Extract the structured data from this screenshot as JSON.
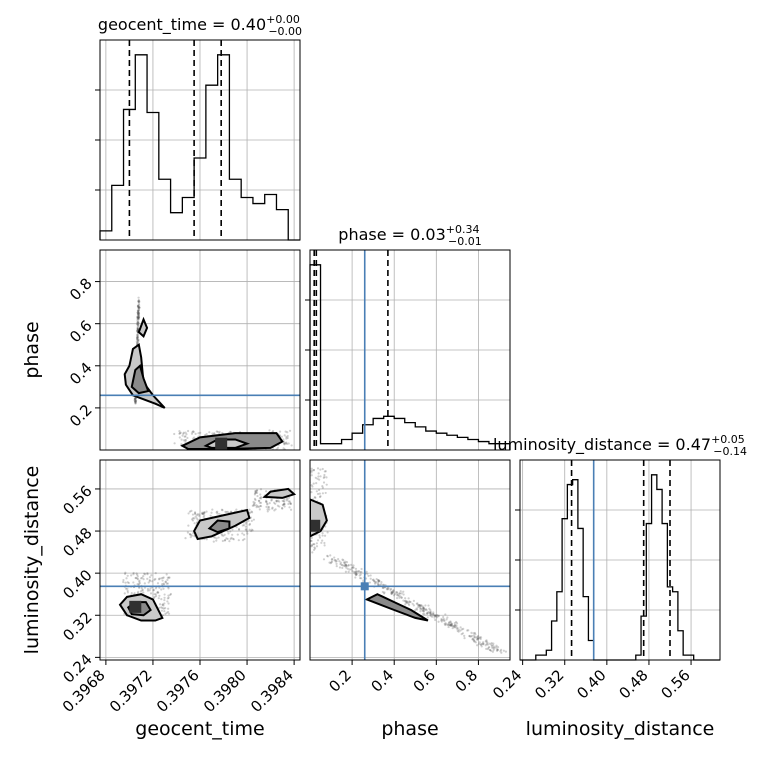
{
  "chart_data": {
    "type": "corner",
    "parameters": [
      "geocent_time",
      "phase",
      "luminosity_distance"
    ],
    "axis_labels": {
      "geocent_time": "geocent_time",
      "phase": "phase",
      "luminosity_distance": "luminosity_distance"
    },
    "ranges": {
      "geocent_time": [
        0.39675,
        0.39845
      ],
      "phase": [
        0.0,
        0.95
      ],
      "luminosity_distance": [
        0.235,
        0.615
      ]
    },
    "ticks": {
      "geocent_time": [
        "0.3968",
        "0.3972",
        "0.3976",
        "0.3980",
        "0.3984"
      ],
      "phase": [
        "0.2",
        "0.4",
        "0.6",
        "0.8"
      ],
      "luminosity_distance": [
        "0.24",
        "0.32",
        "0.40",
        "0.48",
        "0.56"
      ]
    },
    "truths": {
      "geocent_time": null,
      "phase": 0.26,
      "luminosity_distance": 0.375
    },
    "marginals": [
      {
        "parameter": "geocent_time",
        "title_main": "geocent_time = 0.40",
        "title_plus": "+0.00",
        "title_minus": "−0.00",
        "quantiles": [
          0.397,
          0.39755,
          0.39778
        ],
        "bin_edges": [
          0.39675,
          0.39685,
          0.39695,
          0.39705,
          0.39715,
          0.39725,
          0.39735,
          0.39745,
          0.39755,
          0.39765,
          0.39775,
          0.39785,
          0.39795,
          0.39805,
          0.39815,
          0.39825,
          0.39835,
          0.39845
        ],
        "counts": [
          3,
          18,
          43,
          61,
          42,
          20,
          9,
          14,
          27,
          51,
          61,
          20,
          14,
          12,
          15,
          10,
          0
        ]
      },
      {
        "parameter": "phase",
        "title_main": "phase = 0.03",
        "title_plus": "+0.34",
        "title_minus": "−0.01",
        "quantiles": [
          0.02,
          0.03,
          0.37
        ],
        "bin_edges": [
          0.0,
          0.05,
          0.1,
          0.15,
          0.2,
          0.25,
          0.3,
          0.35,
          0.4,
          0.45,
          0.5,
          0.55,
          0.6,
          0.65,
          0.7,
          0.75,
          0.8,
          0.85,
          0.9,
          0.95
        ],
        "counts": [
          88,
          3,
          3,
          5,
          8,
          12,
          15,
          16,
          15,
          13,
          11,
          9,
          8,
          7,
          6,
          5,
          4,
          3,
          3
        ]
      },
      {
        "parameter": "luminosity_distance",
        "title_main": "luminosity_distance = 0.47",
        "title_plus": "+0.05",
        "title_minus": "−0.14",
        "quantiles": [
          0.333,
          0.47,
          0.52
        ],
        "bin_edges": [
          0.235,
          0.245,
          0.255,
          0.265,
          0.275,
          0.285,
          0.295,
          0.305,
          0.315,
          0.325,
          0.335,
          0.345,
          0.355,
          0.365,
          0.375,
          0.385,
          0.395,
          0.405,
          0.415,
          0.425,
          0.435,
          0.445,
          0.455,
          0.465,
          0.475,
          0.485,
          0.495,
          0.505,
          0.515,
          0.525,
          0.535,
          0.545,
          0.555,
          0.565,
          0.575,
          0.585,
          0.595,
          0.605,
          0.615
        ],
        "counts": [
          0,
          0,
          0,
          1,
          1,
          2,
          8,
          14,
          29,
          36,
          37,
          27,
          13,
          4,
          0,
          0,
          0,
          0,
          0,
          0,
          0,
          0,
          1,
          9,
          28,
          38,
          35,
          28,
          15,
          14,
          6,
          1,
          1,
          0,
          0,
          0,
          0,
          0
        ]
      }
    ],
    "joint": [
      {
        "x": "geocent_time",
        "y": "phase",
        "clusters": [
          {
            "n": 240,
            "x": [
              0.39705,
              0.39708
            ],
            "y": [
              0.22,
              0.72
            ]
          },
          {
            "n": 260,
            "x": [
              0.3974,
              0.39835
            ],
            "y": [
              0.005,
              0.09
            ]
          }
        ],
        "contours": [
          [
            [
              0.39697,
              0.31
            ],
            [
              0.39703,
              0.26
            ],
            [
              0.39722,
              0.22
            ],
            [
              0.3973,
              0.2
            ],
            [
              0.3972,
              0.26
            ],
            [
              0.39712,
              0.32
            ],
            [
              0.3971,
              0.44
            ],
            [
              0.39708,
              0.5
            ],
            [
              0.39703,
              0.48
            ],
            [
              0.397,
              0.4
            ],
            [
              0.39696,
              0.36
            ]
          ],
          [
            [
              0.39702,
              0.3
            ],
            [
              0.39708,
              0.27
            ],
            [
              0.39716,
              0.28
            ],
            [
              0.39712,
              0.34
            ],
            [
              0.39709,
              0.4
            ],
            [
              0.39705,
              0.38
            ]
          ],
          [
            [
              0.39708,
              0.56
            ],
            [
              0.39712,
              0.54
            ],
            [
              0.39715,
              0.58
            ],
            [
              0.39712,
              0.62
            ]
          ],
          [
            [
              0.39745,
              0.02
            ],
            [
              0.3976,
              0.06
            ],
            [
              0.3979,
              0.08
            ],
            [
              0.39825,
              0.08
            ],
            [
              0.3983,
              0.04
            ],
            [
              0.3982,
              0.01
            ],
            [
              0.3978,
              0.005
            ],
            [
              0.3975,
              0.005
            ]
          ],
          [
            [
              0.39765,
              0.02
            ],
            [
              0.39775,
              0.05
            ],
            [
              0.3979,
              0.05
            ],
            [
              0.398,
              0.03
            ],
            [
              0.3979,
              0.01
            ],
            [
              0.3977,
              0.01
            ]
          ]
        ],
        "peak": [
          0.39778,
          0.03
        ]
      },
      {
        "x": "geocent_time",
        "y": "luminosity_distance",
        "clusters": [
          {
            "n": 220,
            "x": [
              0.39695,
              0.39735
            ],
            "y": [
              0.32,
              0.4
            ]
          },
          {
            "n": 220,
            "x": [
              0.3975,
              0.39805
            ],
            "y": [
              0.46,
              0.52
            ]
          },
          {
            "n": 120,
            "x": [
              0.39805,
              0.39838
            ],
            "y": [
              0.52,
              0.56
            ]
          }
        ],
        "contours": [
          [
            [
              0.39692,
              0.34
            ],
            [
              0.39698,
              0.355
            ],
            [
              0.3971,
              0.36
            ],
            [
              0.3972,
              0.35
            ],
            [
              0.39728,
              0.315
            ],
            [
              0.39722,
              0.31
            ],
            [
              0.3971,
              0.31
            ],
            [
              0.39698,
              0.32
            ]
          ],
          [
            [
              0.39699,
              0.335
            ],
            [
              0.39705,
              0.345
            ],
            [
              0.39714,
              0.345
            ],
            [
              0.39718,
              0.33
            ],
            [
              0.39712,
              0.32
            ],
            [
              0.39702,
              0.322
            ]
          ],
          [
            [
              0.39755,
              0.48
            ],
            [
              0.3976,
              0.5
            ],
            [
              0.3978,
              0.51
            ],
            [
              0.398,
              0.52
            ],
            [
              0.39802,
              0.505
            ],
            [
              0.3979,
              0.49
            ],
            [
              0.3977,
              0.47
            ],
            [
              0.39758,
              0.465
            ]
          ],
          [
            [
              0.39768,
              0.485
            ],
            [
              0.39775,
              0.5
            ],
            [
              0.39785,
              0.498
            ],
            [
              0.39785,
              0.485
            ],
            [
              0.39775,
              0.478
            ]
          ],
          [
            [
              0.39815,
              0.545
            ],
            [
              0.3982,
              0.555
            ],
            [
              0.39835,
              0.56
            ],
            [
              0.3984,
              0.55
            ],
            [
              0.3983,
              0.543
            ]
          ]
        ],
        "peak": [
          0.39705,
          0.336
        ]
      },
      {
        "x": "phase",
        "y": "luminosity_distance",
        "clusters": [
          {
            "n": 120,
            "x": [
              0.0,
              0.08
            ],
            "y": [
              0.44,
              0.6
            ]
          },
          {
            "n": 380,
            "x": [
              0.1,
              0.9
            ],
            "y": [
              0.25,
              0.43
            ]
          }
        ],
        "contours": [
          [
            [
              0.0,
              0.47
            ],
            [
              0.05,
              0.48
            ],
            [
              0.08,
              0.5
            ],
            [
              0.06,
              0.53
            ],
            [
              0.0,
              0.54
            ]
          ],
          [
            [
              0.27,
              0.35
            ],
            [
              0.4,
              0.33
            ],
            [
              0.5,
              0.315
            ],
            [
              0.56,
              0.31
            ],
            [
              0.48,
              0.33
            ],
            [
              0.4,
              0.345
            ],
            [
              0.32,
              0.36
            ]
          ]
        ],
        "peak": [
          0.02,
          0.49
        ]
      }
    ]
  }
}
